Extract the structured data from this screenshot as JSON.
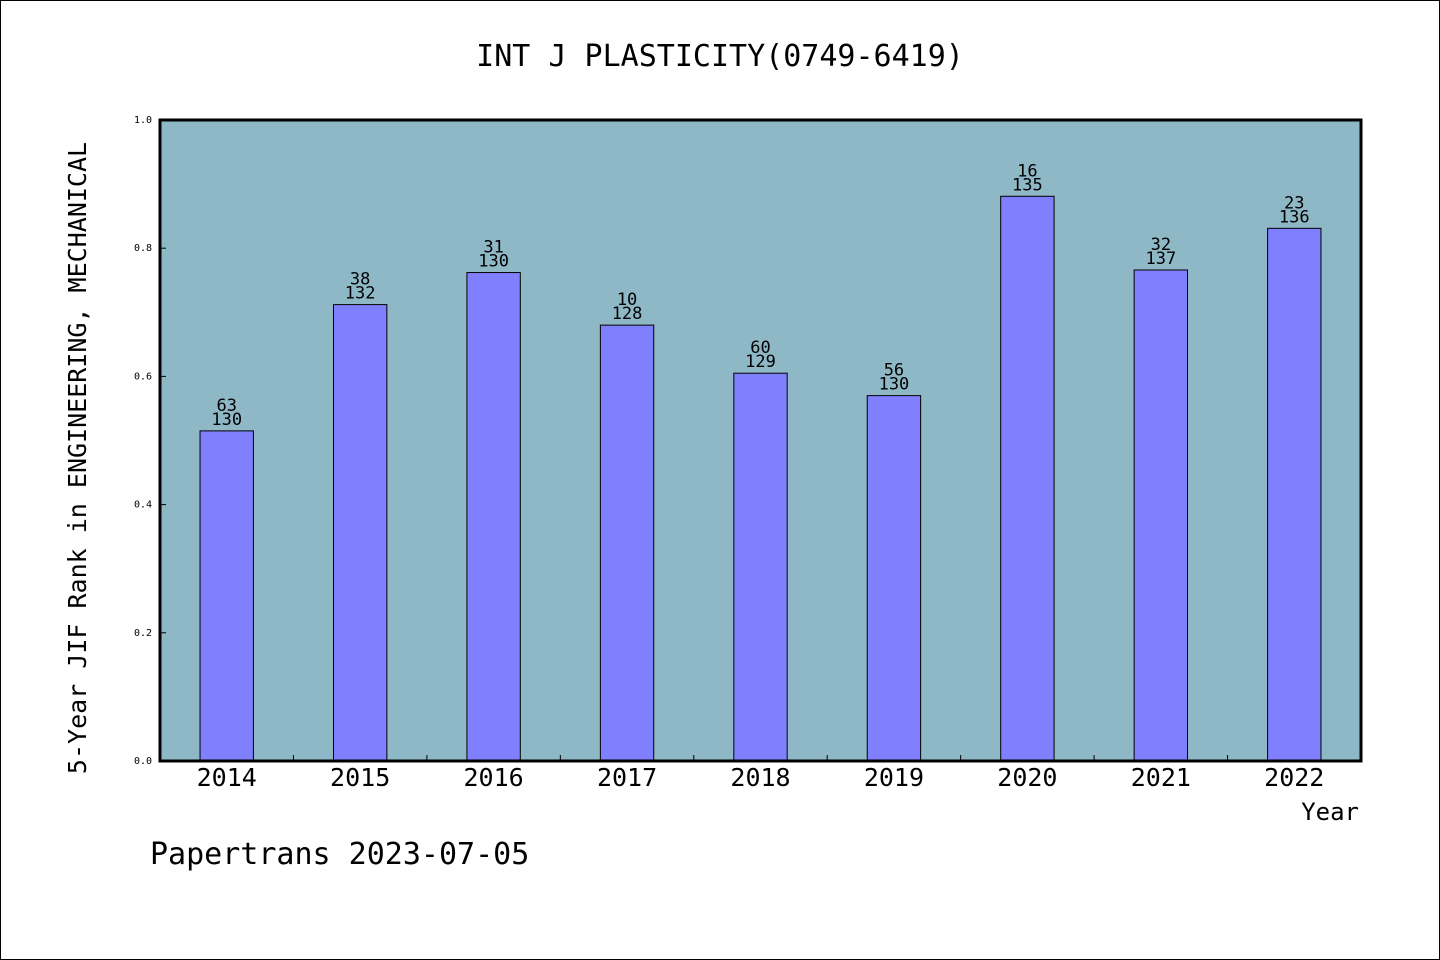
{
  "chart_data": {
    "type": "bar",
    "title": "INT J PLASTICITY(0749-6419)",
    "xlabel": "Year",
    "ylabel": "5-Year JIF Rank in ENGINEERING, MECHANICAL",
    "ylim": [
      0,
      1.0
    ],
    "yticks": [
      "0.0",
      "0.2",
      "0.4",
      "0.6",
      "0.8",
      "1.0"
    ],
    "categories": [
      "2014",
      "2015",
      "2016",
      "2017",
      "2018",
      "2019",
      "2020",
      "2021",
      "2022"
    ],
    "values": [
      0.515,
      0.712,
      0.762,
      0.68,
      0.605,
      0.57,
      0.881,
      0.766,
      0.831
    ],
    "labels_top": [
      "63",
      "38",
      "31",
      "10",
      "60",
      "56",
      "16",
      "32",
      "23"
    ],
    "labels_bottom": [
      "130",
      "132",
      "130",
      "128",
      "129",
      "130",
      "135",
      "137",
      "136"
    ],
    "grid": false,
    "colors": {
      "plot_background": "#8fb8c6",
      "bar_fill": "#8080ff",
      "bar_stroke": "#000000"
    }
  },
  "footer": {
    "credit": "Papertrans 2023-07-05"
  }
}
